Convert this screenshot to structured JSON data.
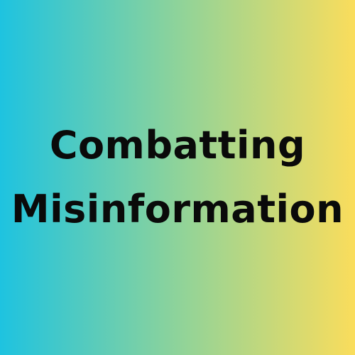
{
  "title": {
    "line1": "Combatting",
    "line2": "Misinformation"
  },
  "colors": {
    "gradient_left": "#1ec3e0",
    "gradient_middle": "#8ed39a",
    "gradient_right": "#fadd5c",
    "text": "#0a0a0a"
  }
}
